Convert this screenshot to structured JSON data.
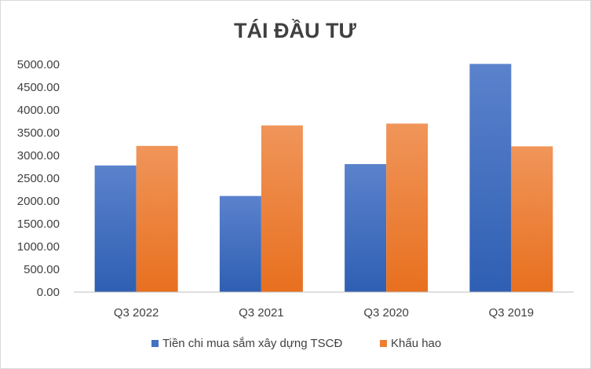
{
  "chart_data": {
    "type": "bar",
    "title": "TÁI ĐẦU TƯ",
    "categories": [
      "Q3 2022",
      "Q3 2021",
      "Q3 2020",
      "Q3 2019"
    ],
    "series": [
      {
        "name": "Tiền chi mua sắm xây dựng TSCĐ",
        "values": [
          2780,
          2110,
          2810,
          5010
        ],
        "color": "#4472c4"
      },
      {
        "name": "Khấu hao",
        "values": [
          3210,
          3660,
          3700,
          3200
        ],
        "color": "#ed7d31"
      }
    ],
    "ylim": [
      0,
      5000
    ],
    "yticks": [
      "0.00",
      "500.00",
      "1000.00",
      "1500.00",
      "2000.00",
      "2500.00",
      "3000.00",
      "3500.00",
      "4000.00",
      "4500.00",
      "5000.00"
    ],
    "grid": false,
    "legend_position": "bottom"
  }
}
